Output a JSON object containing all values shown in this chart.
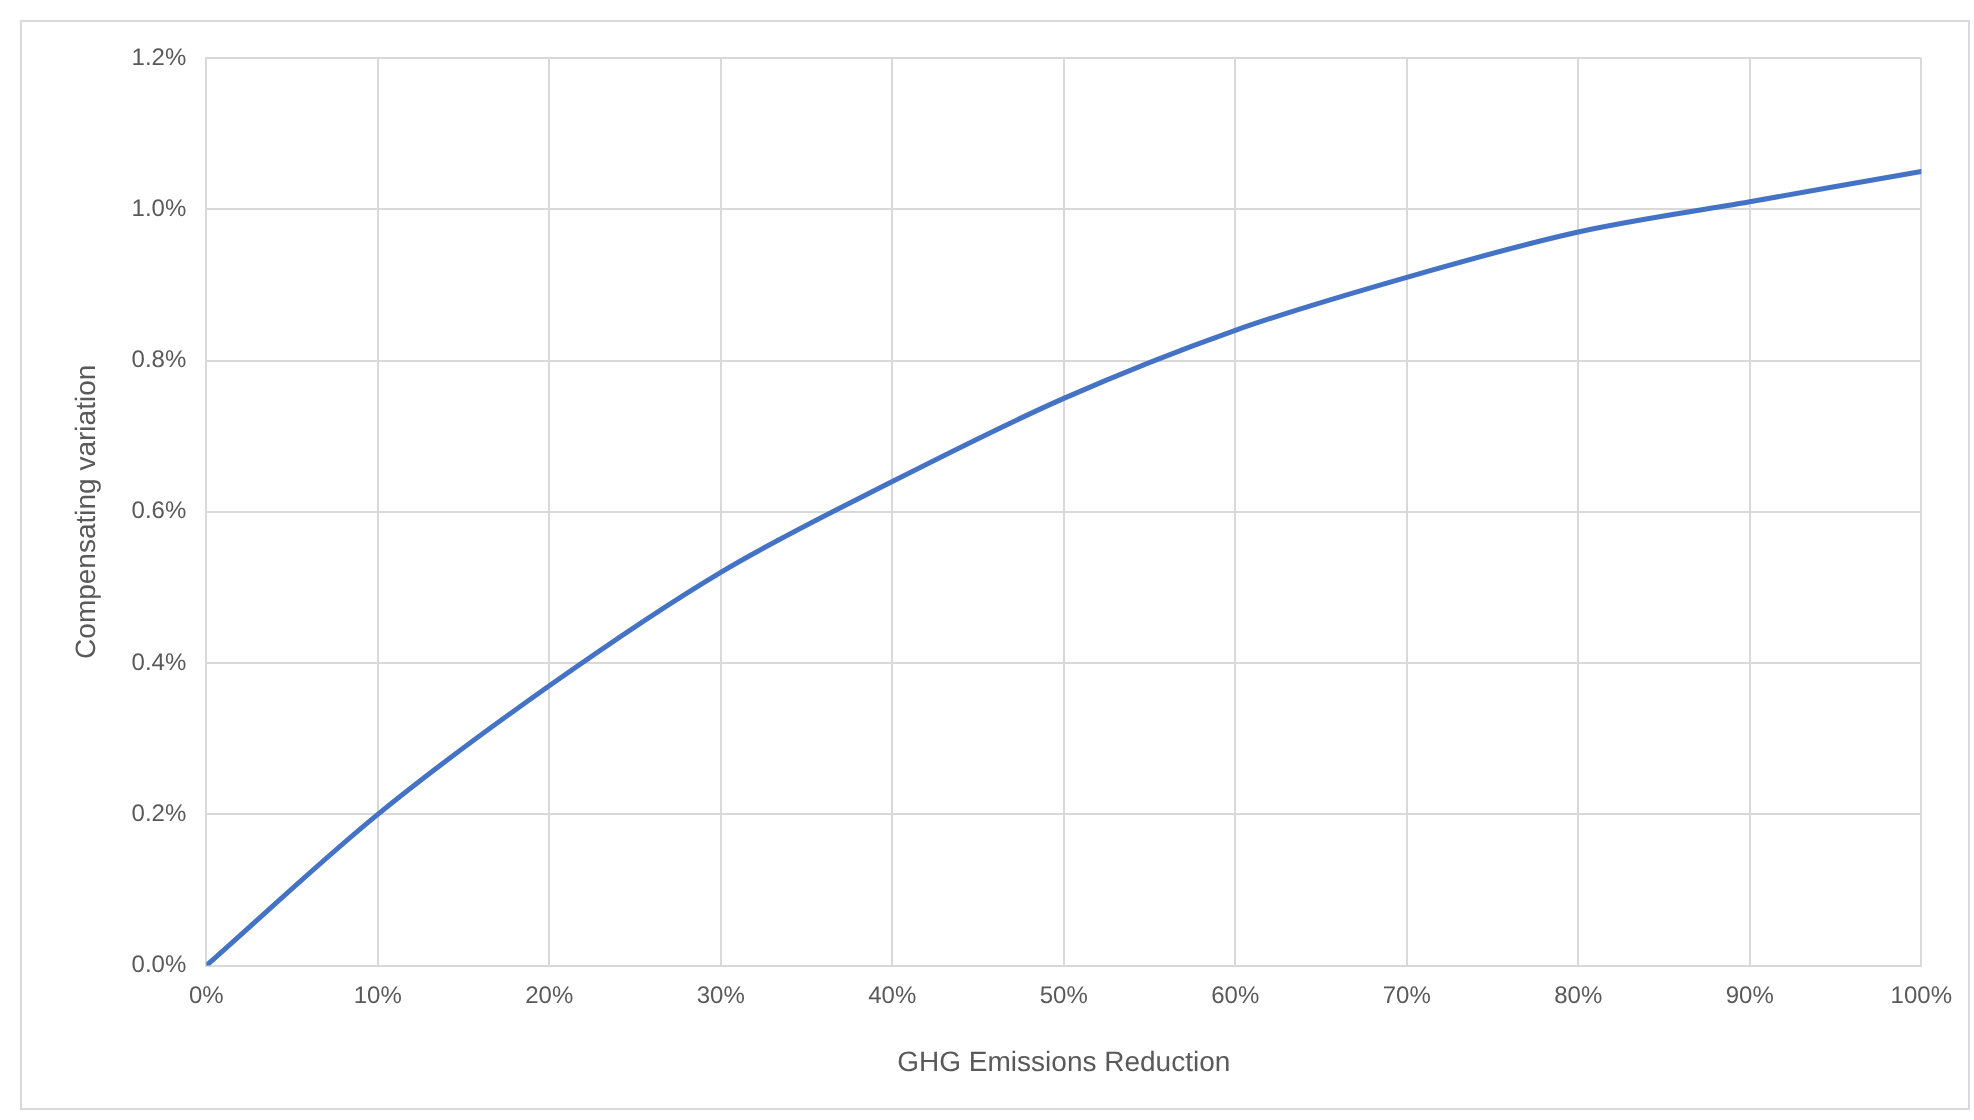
{
  "chart_data": {
    "type": "line",
    "xlabel": "GHG Emissions Reduction",
    "ylabel": "Compensating variation",
    "x": [
      0,
      10,
      20,
      30,
      40,
      50,
      60,
      70,
      80,
      90,
      100
    ],
    "series": [
      {
        "color": "#4472c4",
        "values": [
          0,
          0.2,
          0.37,
          0.52,
          0.64,
          0.75,
          0.84,
          0.91,
          0.97,
          1.01,
          1.05
        ]
      }
    ],
    "xlim": [
      0,
      100
    ],
    "xticks": [
      {
        "value": 0,
        "label": "0%"
      },
      {
        "value": 10,
        "label": "10%"
      },
      {
        "value": 20,
        "label": "20%"
      },
      {
        "value": 30,
        "label": "30%"
      },
      {
        "value": 40,
        "label": "40%"
      },
      {
        "value": 50,
        "label": "50%"
      },
      {
        "value": 60,
        "label": "60%"
      },
      {
        "value": 70,
        "label": "70%"
      },
      {
        "value": 80,
        "label": "80%"
      },
      {
        "value": 90,
        "label": "90%"
      },
      {
        "value": 100,
        "label": "100%"
      }
    ],
    "ylim": [
      0,
      1.2
    ],
    "yticks": [
      {
        "value": 0,
        "label": "0.0%"
      },
      {
        "value": 0.2,
        "label": "0.2%"
      },
      {
        "value": 0.4,
        "label": "0.4%"
      },
      {
        "value": 0.6,
        "label": "0.6%"
      },
      {
        "value": 0.8,
        "label": "0.8%"
      },
      {
        "value": 1.0,
        "label": "1.0%"
      },
      {
        "value": 1.2,
        "label": "1.2%"
      }
    ],
    "grid": true,
    "legend": false,
    "marker": "none",
    "line_style": "solid"
  }
}
